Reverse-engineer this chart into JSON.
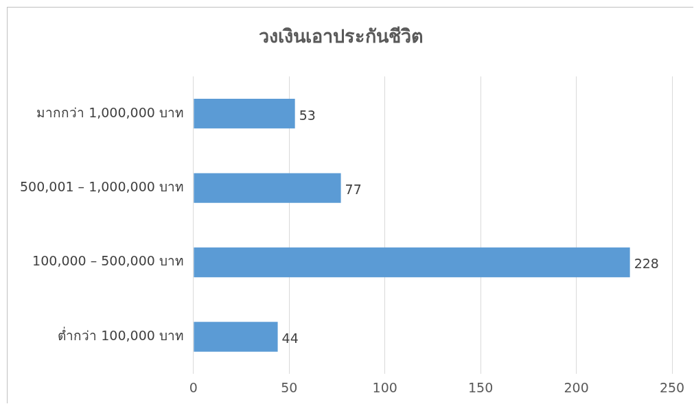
{
  "chart_data": {
    "type": "bar",
    "orientation": "horizontal",
    "title": "วงเงินเอาประกันชีวิต",
    "categories": [
      "มากกว่า 1,000,000 บาท",
      "500,001 – 1,000,000 บาท",
      "100,000 – 500,000 บาท",
      "ต่ำกว่า 100,000 บาท"
    ],
    "values": [
      53,
      77,
      228,
      44
    ],
    "color": "#5b9bd5",
    "xlim": [
      0,
      250
    ],
    "xticks": [
      0,
      50,
      100,
      150,
      200,
      250
    ],
    "grid": "x",
    "data_labels": true,
    "legend": false
  }
}
